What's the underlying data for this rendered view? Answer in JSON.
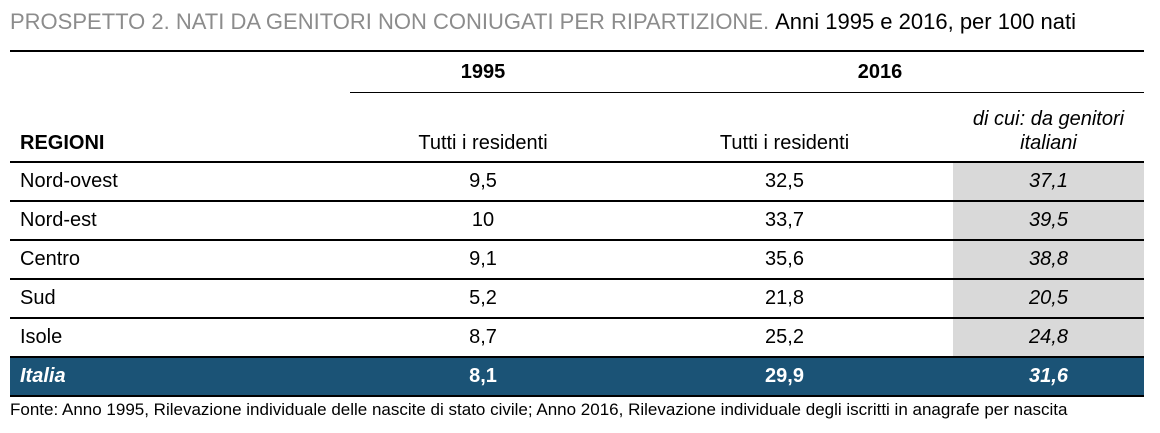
{
  "title": {
    "lead": "PROSPETTO 2. NATI DA GENITORI NON CONIUGATI PER RIPARTIZIONE.",
    "sub": "Anni 1995 e 2016, per 100 nati"
  },
  "colors": {
    "title_lead": "#8c8c8c",
    "shaded_column": "#d9d9d9",
    "total_row": "#1b5376"
  },
  "table": {
    "year_headers": [
      "1995",
      "2016"
    ],
    "column_headers": {
      "region": "REGIONI",
      "residents_1995": "Tutti i residenti",
      "residents_2016": "Tutti i residenti",
      "italian_parents_2016": "di cui: da genitori italiani"
    },
    "rows": [
      {
        "region": "Nord-ovest",
        "v1995": "9,5",
        "v2016": "32,5",
        "v2016_ita": "37,1"
      },
      {
        "region": "Nord-est",
        "v1995": "10",
        "v2016": "33,7",
        "v2016_ita": "39,5"
      },
      {
        "region": "Centro",
        "v1995": "9,1",
        "v2016": "35,6",
        "v2016_ita": "38,8"
      },
      {
        "region": "Sud",
        "v1995": "5,2",
        "v2016": "21,8",
        "v2016_ita": "20,5"
      },
      {
        "region": "Isole",
        "v1995": "8,7",
        "v2016": "25,2",
        "v2016_ita": "24,8"
      }
    ],
    "total": {
      "region": "Italia",
      "v1995": "8,1",
      "v2016": "29,9",
      "v2016_ita": "31,6"
    }
  },
  "source": "Fonte: Anno 1995, Rilevazione individuale delle nascite di stato civile; Anno 2016, Rilevazione individuale degli iscritti in anagrafe per nascita"
}
